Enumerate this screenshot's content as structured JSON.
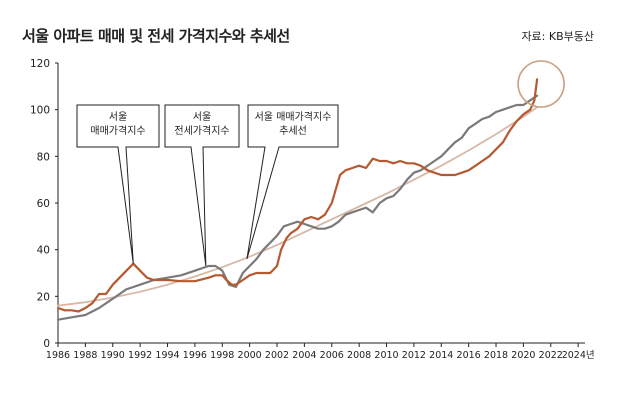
{
  "chart_data": {
    "type": "line",
    "title": "서울 아파트 매매 및 전세 가격지수와 추세선",
    "source": "자료: KB부동산",
    "xlabel": "",
    "ylabel": "",
    "xlim": [
      1986,
      2024.5
    ],
    "ylim": [
      0,
      120
    ],
    "x_ticks": [
      "1986",
      "1988",
      "1990",
      "1992",
      "1994",
      "1996",
      "1998",
      "2000",
      "2002",
      "2004",
      "2006",
      "2008",
      "2010",
      "2012",
      "2014",
      "2016",
      "2018",
      "2020",
      "2022",
      "2024년"
    ],
    "x_tick_values": [
      1986,
      1988,
      1990,
      1992,
      1994,
      1996,
      1998,
      2000,
      2002,
      2004,
      2006,
      2008,
      2010,
      2012,
      2014,
      2016,
      2018,
      2020,
      2022,
      2024
    ],
    "y_ticks": [
      0,
      20,
      40,
      60,
      80,
      100,
      120
    ],
    "grid": false,
    "annotations": [
      {
        "lines": [
          "서울",
          "매매가격지수"
        ],
        "target_x": 1991.5,
        "target_y": 34
      },
      {
        "lines": [
          "서울",
          "전세가격지수"
        ],
        "target_x": 1996.8,
        "target_y": 33
      },
      {
        "lines": [
          "서울 매매가격지수",
          "추세선"
        ],
        "target_x": 1999.8,
        "target_y": 36
      }
    ],
    "highlight": {
      "shape": "circle",
      "x": 2021,
      "y": 111
    },
    "series": [
      {
        "key": "sale",
        "color": "#b55a30",
        "x": [
          1986,
          1986.5,
          1987,
          1987.5,
          1988,
          1988.5,
          1989,
          1989.5,
          1990,
          1990.5,
          1991,
          1991.5,
          1992,
          1992.5,
          1993,
          1993.5,
          1994,
          1995,
          1996,
          1997,
          1997.5,
          1998,
          1998.3,
          1998.7,
          1999,
          1999.5,
          2000,
          2000.5,
          2001,
          2001.5,
          2002,
          2002.3,
          2002.7,
          2003,
          2003.5,
          2004,
          2004.5,
          2005,
          2005.5,
          2006,
          2006.3,
          2006.6,
          2007,
          2007.5,
          2008,
          2008.5,
          2009,
          2009.5,
          2010,
          2010.5,
          2011,
          2011.5,
          2012,
          2012.5,
          2013,
          2013.5,
          2014,
          2014.5,
          2015,
          2015.5,
          2016,
          2016.5,
          2017,
          2017.5,
          2018,
          2018.5,
          2019,
          2019.5,
          2020,
          2020.5,
          2020.8,
          2021
        ],
        "values": [
          15,
          14,
          14,
          13.5,
          15,
          17,
          21,
          21,
          25,
          28,
          31,
          34,
          31,
          28,
          27,
          27,
          27,
          26.5,
          26.5,
          28,
          29,
          29,
          27,
          25,
          25,
          27,
          29,
          30,
          30,
          30,
          33,
          40,
          45,
          47,
          49,
          53,
          54,
          53,
          55,
          60,
          66,
          72,
          74,
          75,
          76,
          75,
          79,
          78,
          78,
          77,
          78,
          77,
          77,
          76,
          74,
          73,
          72,
          72,
          72,
          73,
          74,
          76,
          78,
          80,
          83,
          86,
          91,
          95,
          98,
          100,
          104,
          113
        ]
      },
      {
        "key": "jeonse",
        "color": "#7a7a7a",
        "x": [
          1986,
          1987,
          1988,
          1989,
          1990,
          1990.5,
          1991,
          1991.5,
          1992,
          1993,
          1994,
          1995,
          1996,
          1997,
          1997.5,
          1998,
          1998.5,
          1999,
          1999.5,
          2000,
          2000.5,
          2001,
          2001.5,
          2002,
          2002.5,
          2003,
          2003.5,
          2004,
          2004.5,
          2005,
          2005.5,
          2006,
          2006.5,
          2007,
          2007.5,
          2008,
          2008.5,
          2009,
          2009.5,
          2010,
          2010.5,
          2011,
          2011.5,
          2012,
          2012.5,
          2013,
          2013.5,
          2014,
          2014.5,
          2015,
          2015.5,
          2016,
          2016.5,
          2017,
          2017.5,
          2018,
          2018.5,
          2019,
          2019.5,
          2020,
          2020.5,
          2021
        ],
        "values": [
          10,
          11,
          12,
          15,
          19,
          21,
          23,
          24,
          25,
          27,
          28,
          29,
          31,
          33,
          33,
          31,
          25,
          24,
          30,
          33,
          36,
          40,
          43,
          46,
          50,
          51,
          52,
          51,
          50,
          49,
          49,
          50,
          52,
          55,
          56,
          57,
          58,
          56,
          60,
          62,
          63,
          66,
          70,
          73,
          74,
          76,
          78,
          80,
          83,
          86,
          88,
          92,
          94,
          96,
          97,
          99,
          100,
          101,
          102,
          102,
          104,
          106
        ]
      },
      {
        "key": "trend",
        "color": "#d7b8a8",
        "x": [
          1986,
          1988,
          1990,
          1992,
          1994,
          1996,
          1998,
          2000,
          2002,
          2004,
          2006,
          2008,
          2010,
          2012,
          2014,
          2016,
          2018,
          2020,
          2021
        ],
        "values": [
          16,
          17.5,
          19.5,
          22,
          25,
          28.5,
          32.5,
          37,
          42,
          47.5,
          53,
          58.5,
          64,
          70,
          76,
          82.5,
          89.5,
          97,
          101
        ]
      }
    ]
  }
}
